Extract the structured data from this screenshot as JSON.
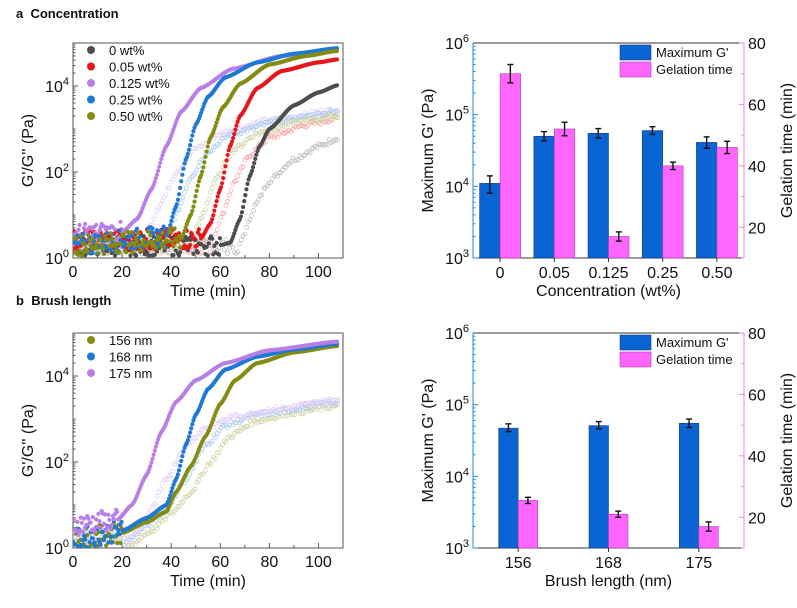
{
  "panels": {
    "a": {
      "letter": "a",
      "title": "Concentration"
    },
    "b": {
      "letter": "b",
      "title": "Brush length"
    }
  },
  "colors": {
    "gray": "#4d4d4d",
    "red": "#e8161b",
    "lavender": "#b87fe6",
    "blue": "#1f78d6",
    "olive": "#838c10",
    "bar_blue": "#0a64d4",
    "bar_pink": "#ff66ff",
    "axis_blue": "#1f8ae0",
    "axis_pink": "#f07ef0"
  },
  "chart_data": [
    {
      "id": "a-rheology",
      "type": "scatter",
      "title": "",
      "xlabel": "Time (min)",
      "ylabel": "G'/G'' (Pa)",
      "xlim": [
        0,
        110
      ],
      "ylim_log10": [
        0,
        5
      ],
      "yscale": "log",
      "xticks": [
        0,
        20,
        40,
        60,
        80,
        100
      ],
      "yticks": [
        {
          "exp": "0",
          "v": 0
        },
        {
          "exp": "2",
          "v": 2
        },
        {
          "exp": "4",
          "v": 4
        }
      ],
      "legend": "top-left",
      "series": [
        {
          "name": "0 wt%",
          "color": "#4d4d4d",
          "Gp_log10": [
            [
              0,
              0.3
            ],
            [
              60,
              0.3
            ],
            [
              64,
              0.35
            ],
            [
              68,
              0.9
            ],
            [
              72,
              1.9
            ],
            [
              76,
              2.6
            ],
            [
              80,
              3.0
            ],
            [
              90,
              3.55
            ],
            [
              100,
              3.85
            ],
            [
              108,
              4.02
            ]
          ],
          "Gpp_log10": [
            [
              66,
              0.0
            ],
            [
              70,
              0.6
            ],
            [
              74,
              1.2
            ],
            [
              80,
              1.8
            ],
            [
              90,
              2.3
            ],
            [
              100,
              2.6
            ],
            [
              108,
              2.8
            ]
          ]
        },
        {
          "name": "0.05 wt%",
          "color": "#e8161b",
          "Gp_log10": [
            [
              0,
              0.4
            ],
            [
              52,
              0.45
            ],
            [
              56,
              0.8
            ],
            [
              60,
              1.6
            ],
            [
              64,
              2.6
            ],
            [
              68,
              3.3
            ],
            [
              75,
              3.95
            ],
            [
              85,
              4.35
            ],
            [
              100,
              4.55
            ],
            [
              108,
              4.62
            ]
          ],
          "Gpp_log10": [
            [
              56,
              0.2
            ],
            [
              60,
              0.9
            ],
            [
              66,
              1.8
            ],
            [
              72,
              2.4
            ],
            [
              80,
              2.8
            ],
            [
              95,
              3.1
            ],
            [
              108,
              3.25
            ]
          ]
        },
        {
          "name": "0.125 wt%",
          "color": "#b87fe6",
          "Gp_log10": [
            [
              0,
              0.55
            ],
            [
              20,
              0.6
            ],
            [
              26,
              0.9
            ],
            [
              32,
              1.6
            ],
            [
              38,
              2.6
            ],
            [
              44,
              3.4
            ],
            [
              52,
              3.95
            ],
            [
              65,
              4.4
            ],
            [
              85,
              4.7
            ],
            [
              108,
              4.85
            ]
          ],
          "Gpp_log10": [
            [
              30,
              0.6
            ],
            [
              36,
              1.3
            ],
            [
              42,
              2.0
            ],
            [
              50,
              2.55
            ],
            [
              60,
              2.9
            ],
            [
              80,
              3.2
            ],
            [
              108,
              3.45
            ]
          ]
        },
        {
          "name": "0.25 wt%",
          "color": "#1f78d6",
          "Gp_log10": [
            [
              0,
              0.3
            ],
            [
              38,
              0.5
            ],
            [
              42,
              1.2
            ],
            [
              46,
              2.3
            ],
            [
              50,
              3.1
            ],
            [
              55,
              3.75
            ],
            [
              62,
              4.2
            ],
            [
              75,
              4.55
            ],
            [
              90,
              4.75
            ],
            [
              108,
              4.88
            ]
          ],
          "Gpp_log10": [
            [
              38,
              0.5
            ],
            [
              42,
              1.0
            ],
            [
              48,
              1.9
            ],
            [
              55,
              2.5
            ],
            [
              65,
              2.9
            ],
            [
              85,
              3.2
            ],
            [
              108,
              3.4
            ]
          ]
        },
        {
          "name": "0.50 wt%",
          "color": "#838c10",
          "Gp_log10": [
            [
              0,
              0.3
            ],
            [
              44,
              0.45
            ],
            [
              48,
              1.0
            ],
            [
              52,
              1.9
            ],
            [
              56,
              2.8
            ],
            [
              61,
              3.5
            ],
            [
              68,
              4.05
            ],
            [
              80,
              4.5
            ],
            [
              95,
              4.7
            ],
            [
              108,
              4.82
            ]
          ],
          "Gpp_log10": [
            [
              48,
              0.3
            ],
            [
              52,
              0.9
            ],
            [
              58,
              1.8
            ],
            [
              65,
              2.5
            ],
            [
              75,
              2.9
            ],
            [
              90,
              3.15
            ],
            [
              108,
              3.3
            ]
          ]
        }
      ]
    },
    {
      "id": "a-bars",
      "type": "bar",
      "title": "",
      "xlabel": "Concentration (wt%)",
      "ylabel": "Maximum G' (Pa)",
      "y2label": "Gelation time (min)",
      "categories": [
        "0",
        "0.05",
        "0.125",
        "0.25",
        "0.50"
      ],
      "ylim_log10": [
        3,
        6
      ],
      "y2lim": [
        10,
        80
      ],
      "yticks": [
        {
          "exp": "3",
          "v": 3
        },
        {
          "exp": "4",
          "v": 4
        },
        {
          "exp": "5",
          "v": 5
        },
        {
          "exp": "6",
          "v": 6
        }
      ],
      "y2ticks": [
        20,
        40,
        60,
        80
      ],
      "legend": "top-right",
      "series": [
        {
          "name": "Maximum G'",
          "axis": "left",
          "color": "#0a64d4",
          "values": [
            11000,
            50000,
            55000,
            60000,
            41000
          ],
          "err_low": [
            8000,
            43000,
            47000,
            53000,
            34000
          ],
          "err_high": [
            14000,
            58000,
            64000,
            68000,
            49000
          ]
        },
        {
          "name": "Gelation time",
          "axis": "right",
          "color": "#ff66ff",
          "values": [
            70,
            52,
            17,
            40,
            46
          ],
          "errors": [
            3,
            2.2,
            1.5,
            1.2,
            2
          ]
        }
      ]
    },
    {
      "id": "b-rheology",
      "type": "scatter",
      "title": "",
      "xlabel": "Time (min)",
      "ylabel": "G'/G'' (Pa)",
      "xlim": [
        0,
        110
      ],
      "ylim_log10": [
        0,
        5
      ],
      "yscale": "log",
      "xticks": [
        0,
        20,
        40,
        60,
        80,
        100
      ],
      "yticks": [
        {
          "exp": "0",
          "v": 0
        },
        {
          "exp": "2",
          "v": 2
        },
        {
          "exp": "4",
          "v": 4
        }
      ],
      "legend": "top-left",
      "series": [
        {
          "name": "156 nm",
          "color": "#838c10",
          "Gp_log10": [
            [
              0,
              0.2
            ],
            [
              20,
              0.35
            ],
            [
              30,
              0.6
            ],
            [
              38,
              0.85
            ],
            [
              42,
              1.3
            ],
            [
              48,
              1.9
            ],
            [
              54,
              2.6
            ],
            [
              60,
              3.35
            ],
            [
              66,
              3.9
            ],
            [
              75,
              4.3
            ],
            [
              90,
              4.55
            ],
            [
              108,
              4.7
            ]
          ],
          "Gpp_log10": [
            [
              22,
              0.0
            ],
            [
              32,
              0.4
            ],
            [
              40,
              0.8
            ],
            [
              48,
              1.3
            ],
            [
              56,
              2.0
            ],
            [
              64,
              2.6
            ],
            [
              74,
              2.95
            ],
            [
              90,
              3.15
            ],
            [
              108,
              3.3
            ]
          ]
        },
        {
          "name": "168 nm",
          "color": "#1f78d6",
          "Gp_log10": [
            [
              0,
              0.2
            ],
            [
              20,
              0.4
            ],
            [
              30,
              0.7
            ],
            [
              38,
              1.0
            ],
            [
              42,
              1.6
            ],
            [
              46,
              2.4
            ],
            [
              50,
              3.1
            ],
            [
              55,
              3.7
            ],
            [
              62,
              4.15
            ],
            [
              75,
              4.45
            ],
            [
              90,
              4.62
            ],
            [
              108,
              4.75
            ]
          ],
          "Gpp_log10": [
            [
              20,
              0.1
            ],
            [
              30,
              0.5
            ],
            [
              38,
              0.9
            ],
            [
              46,
              1.6
            ],
            [
              54,
              2.4
            ],
            [
              62,
              2.85
            ],
            [
              75,
              3.1
            ],
            [
              108,
              3.4
            ]
          ]
        },
        {
          "name": "175 nm",
          "color": "#b87fe6",
          "Gp_log10": [
            [
              0,
              0.55
            ],
            [
              18,
              0.65
            ],
            [
              24,
              1.0
            ],
            [
              30,
              1.7
            ],
            [
              36,
              2.7
            ],
            [
              42,
              3.4
            ],
            [
              50,
              3.9
            ],
            [
              62,
              4.3
            ],
            [
              80,
              4.6
            ],
            [
              108,
              4.8
            ]
          ],
          "Gpp_log10": [
            [
              26,
              0.3
            ],
            [
              32,
              0.9
            ],
            [
              38,
              1.6
            ],
            [
              46,
              2.4
            ],
            [
              54,
              2.8
            ],
            [
              65,
              3.05
            ],
            [
              85,
              3.25
            ],
            [
              108,
              3.45
            ]
          ]
        }
      ]
    },
    {
      "id": "b-bars",
      "type": "bar",
      "title": "",
      "xlabel": "Brush length (nm)",
      "ylabel": "Maximum G' (Pa)",
      "y2label": "Gelation time (min)",
      "categories": [
        "156",
        "168",
        "175"
      ],
      "ylim_log10": [
        3,
        6
      ],
      "y2lim": [
        10,
        80
      ],
      "yticks": [
        {
          "exp": "3",
          "v": 3
        },
        {
          "exp": "4",
          "v": 4
        },
        {
          "exp": "5",
          "v": 5
        },
        {
          "exp": "6",
          "v": 6
        }
      ],
      "y2ticks": [
        20,
        40,
        60,
        80
      ],
      "legend": "top-right",
      "series": [
        {
          "name": "Maximum G'",
          "axis": "left",
          "color": "#0a64d4",
          "values": [
            47000,
            51000,
            55000
          ],
          "err_low": [
            42000,
            46000,
            48000
          ],
          "err_high": [
            54000,
            58000,
            63000
          ]
        },
        {
          "name": "Gelation time",
          "axis": "right",
          "color": "#ff66ff",
          "values": [
            25.5,
            21,
            17
          ],
          "errors": [
            1,
            1,
            1.5
          ]
        }
      ]
    }
  ]
}
